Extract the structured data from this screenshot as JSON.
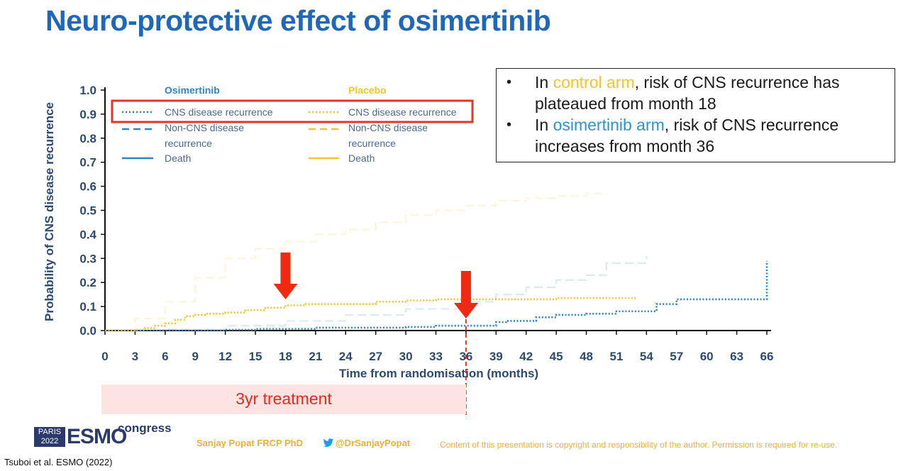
{
  "title": "Neuro-protective effect of osimertinib",
  "callout": {
    "bullet1": {
      "pre": "In ",
      "highlight": "control arm",
      "post": ", risk of CNS recurrence has plateaued from month 18"
    },
    "bullet2": {
      "pre": "In ",
      "highlight": "osimertinib arm",
      "post": ", risk of CNS recurrence increases from month 36"
    }
  },
  "legend": {
    "osimertinib_header": "Osimertinib",
    "placebo_header": "Placebo",
    "cns": "CNS disease recurrence",
    "noncns_1": "Non-CNS disease",
    "noncns_2": "recurrence",
    "death": "Death"
  },
  "treatment_label": "3yr treatment",
  "footer": {
    "logo_paris": "PARIS",
    "logo_year": "2022",
    "logo_esmo": "ESMO",
    "logo_congress": "congress",
    "author": "Sanjay Popat FRCP PhD",
    "twitter": "@DrSanjayPopat",
    "copyright": "Content of this presentation is copyright and responsibility of the author. Permission is required for re-use.",
    "citation": "Tsuboi et al. ESMO (2022)"
  },
  "colors": {
    "title": "#1f67b8",
    "osimertinib": "#2c86c6",
    "placebo": "#f2c52c",
    "arrow": "#f02a10",
    "axis": "#2c4a6e",
    "highlight_box": "#e5332a"
  },
  "chart_data": {
    "type": "line",
    "title": "",
    "xlabel": "Time from randomisation (months)",
    "ylabel": "Probability of CNS disease recurrence",
    "xlim": [
      0,
      66
    ],
    "ylim": [
      0,
      1.0
    ],
    "xticks": [
      0,
      3,
      6,
      9,
      12,
      15,
      18,
      21,
      24,
      27,
      30,
      33,
      36,
      39,
      42,
      45,
      48,
      51,
      54,
      57,
      60,
      63,
      66
    ],
    "yticks": [
      0.0,
      0.1,
      0.2,
      0.3,
      0.4,
      0.5,
      0.6,
      0.7,
      0.8,
      0.9,
      1.0
    ],
    "series": [
      {
        "name": "Osimertinib CNS disease recurrence",
        "style": "dotted",
        "emphasis": true,
        "x": [
          0,
          6,
          12,
          15,
          18,
          21,
          24,
          30,
          33,
          36,
          39,
          40,
          42,
          43,
          45,
          48,
          51,
          54,
          55,
          56,
          57,
          60,
          63,
          66,
          66
        ],
        "y": [
          0.0,
          0.0,
          0.003,
          0.007,
          0.007,
          0.012,
          0.012,
          0.015,
          0.02,
          0.02,
          0.035,
          0.04,
          0.04,
          0.055,
          0.065,
          0.07,
          0.08,
          0.08,
          0.11,
          0.11,
          0.13,
          0.13,
          0.13,
          0.13,
          0.29
        ]
      },
      {
        "name": "Placebo CNS disease recurrence",
        "style": "dotted",
        "emphasis": true,
        "x": [
          0,
          2,
          3,
          4,
          5,
          6,
          7,
          8,
          9,
          10,
          12,
          14,
          16,
          18,
          20,
          22,
          24,
          27,
          30,
          33,
          36,
          39,
          42,
          45,
          48,
          51,
          53
        ],
        "y": [
          0.0,
          0.0,
          0.003,
          0.01,
          0.02,
          0.03,
          0.045,
          0.06,
          0.065,
          0.07,
          0.075,
          0.085,
          0.095,
          0.105,
          0.11,
          0.11,
          0.11,
          0.12,
          0.125,
          0.13,
          0.13,
          0.13,
          0.13,
          0.135,
          0.135,
          0.135,
          0.135
        ]
      },
      {
        "name": "Osimertinib Non-CNS disease recurrence",
        "style": "dashed",
        "emphasis": false,
        "x": [
          0,
          6,
          12,
          18,
          24,
          30,
          36,
          39,
          42,
          45,
          48,
          50,
          54
        ],
        "y": [
          0.0,
          0.005,
          0.02,
          0.04,
          0.065,
          0.09,
          0.12,
          0.15,
          0.18,
          0.21,
          0.23,
          0.28,
          0.31
        ]
      },
      {
        "name": "Placebo Non-CNS disease recurrence",
        "style": "dashed",
        "emphasis": false,
        "x": [
          0,
          3,
          6,
          9,
          12,
          15,
          18,
          21,
          24,
          27,
          30,
          33,
          36,
          39,
          42,
          45,
          48,
          50
        ],
        "y": [
          0.0,
          0.05,
          0.12,
          0.22,
          0.3,
          0.34,
          0.37,
          0.4,
          0.42,
          0.45,
          0.48,
          0.5,
          0.52,
          0.54,
          0.55,
          0.56,
          0.57,
          0.57
        ]
      }
    ],
    "annotations": [
      {
        "type": "arrow",
        "x": 18,
        "label": ""
      },
      {
        "type": "arrow",
        "x": 36,
        "label": ""
      },
      {
        "type": "vline",
        "x": 36,
        "style": "dashed"
      }
    ]
  }
}
